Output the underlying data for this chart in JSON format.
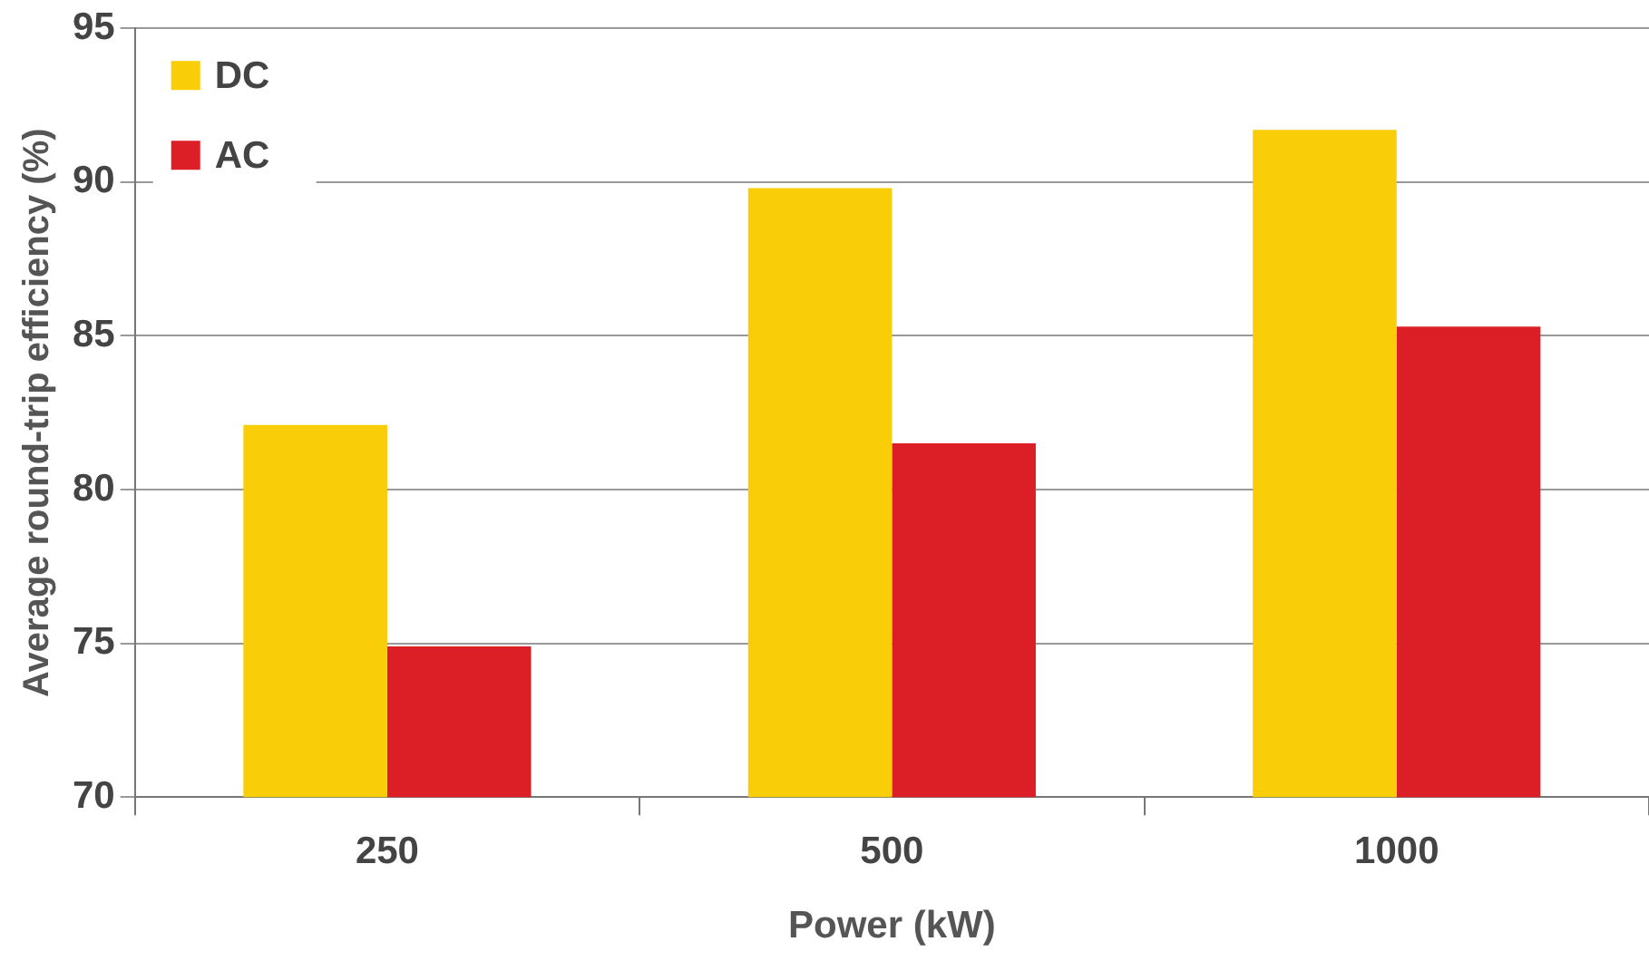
{
  "chart_data": {
    "type": "bar",
    "xlabel": "Power (kW)",
    "ylabel": "Average round-trip efficiency (%)",
    "categories": [
      "250",
      "500",
      "1000"
    ],
    "series": [
      {
        "name": "DC",
        "color": "#f9cd07",
        "values": [
          82.1,
          89.8,
          91.7
        ]
      },
      {
        "name": "AC",
        "color": "#dc1f26",
        "values": [
          74.9,
          81.5,
          85.3
        ]
      }
    ],
    "ylim": [
      70,
      95
    ],
    "yticks": [
      70,
      75,
      80,
      85,
      90,
      95
    ],
    "grid": "y",
    "legend": "top left"
  }
}
